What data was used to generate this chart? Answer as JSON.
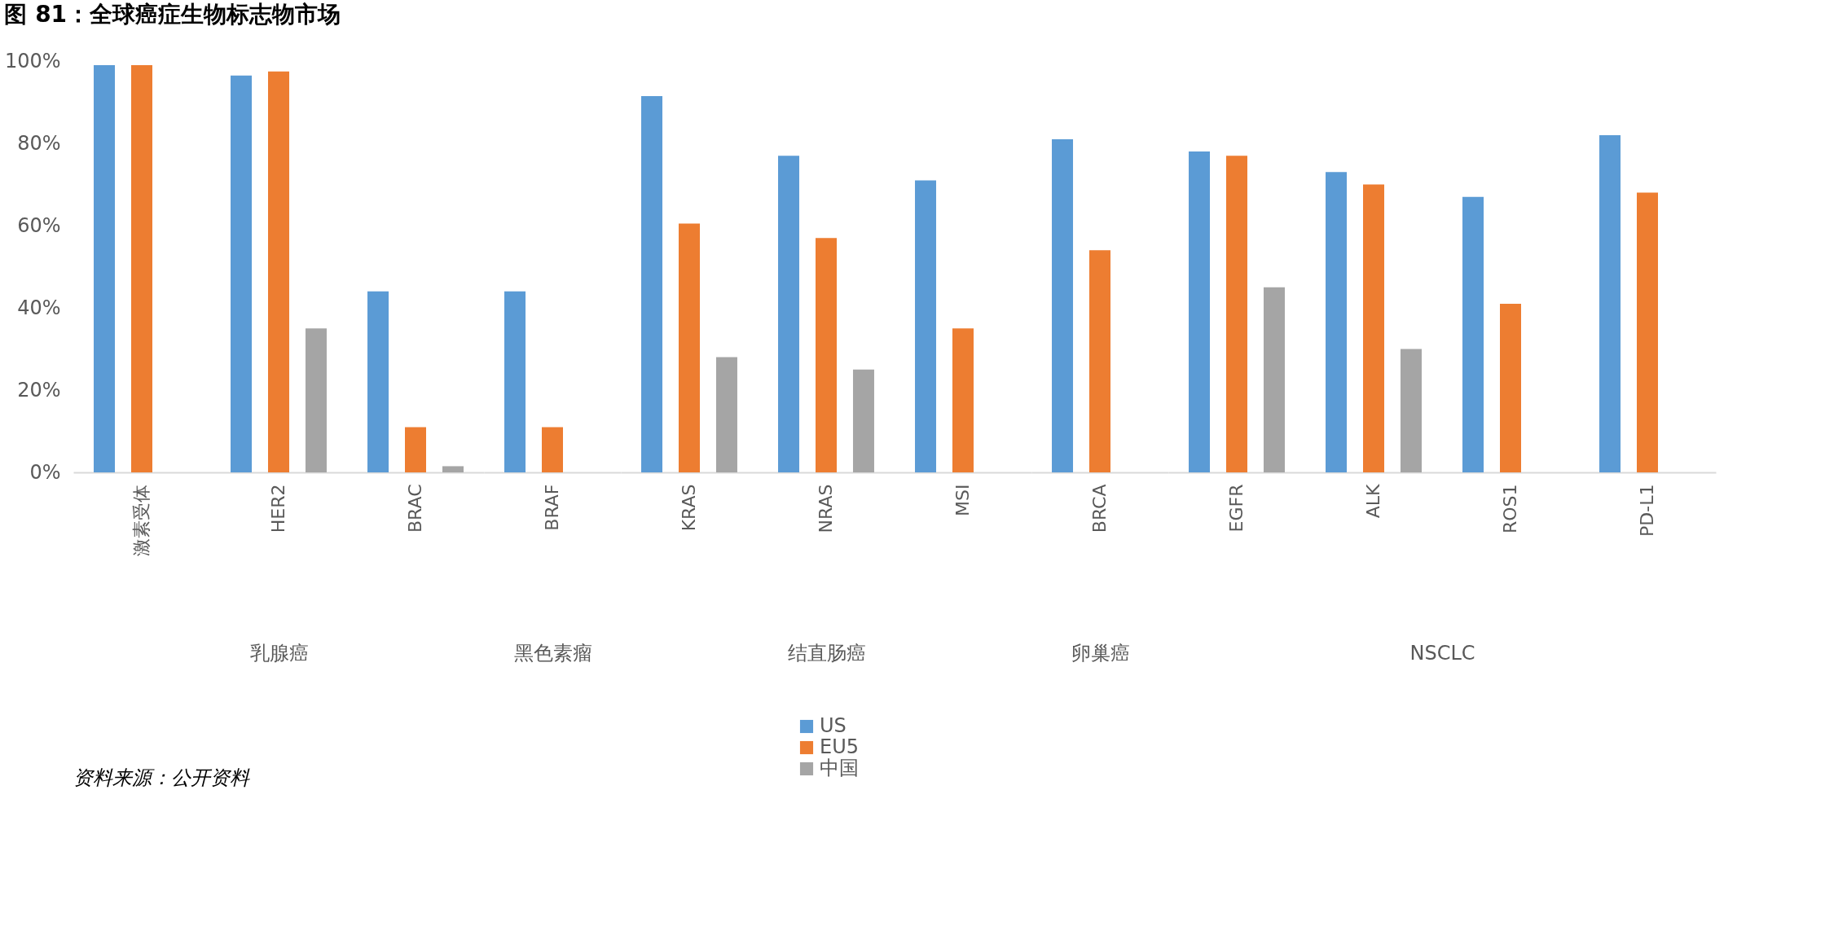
{
  "chart_data": [
    {
      "type": "bar",
      "title": "图 81：全球癌症生物标志物市场",
      "annotations": [
        "资料来源：公开资料"
      ],
      "xlabel": "乳腺癌",
      "categories": [
        "激素受体",
        "HER2",
        "BRAC"
      ],
      "series": [
        {
          "name": "US",
          "color": "#5b9bd5",
          "values": [
            99,
            96.5,
            44
          ]
        },
        {
          "name": "EU5",
          "color": "#ed7d31",
          "values": [
            99,
            97.5,
            11
          ]
        },
        {
          "name": "中国",
          "color": "#a5a5a5",
          "values": [
            null,
            35,
            1.5
          ]
        }
      ],
      "ylim": [
        0,
        100
      ],
      "yticks": [
        {
          "value": 0,
          "label": "0%"
        },
        {
          "value": 20,
          "label": "20%"
        },
        {
          "value": 40,
          "label": "40%"
        },
        {
          "value": 60,
          "label": "60%"
        },
        {
          "value": 80,
          "label": "80%"
        },
        {
          "value": 100,
          "label": "100%"
        }
      ],
      "grid": false,
      "legend": "bottom"
    },
    {
      "type": "bar",
      "xlabel": "黑色素瘤",
      "categories": [
        "BRAF"
      ],
      "series": [
        {
          "name": "US",
          "color": "#5b9bd5",
          "values": [
            44
          ]
        },
        {
          "name": "EU5",
          "color": "#ed7d31",
          "values": [
            11
          ]
        },
        {
          "name": "中国",
          "color": "#a5a5a5",
          "values": [
            null
          ]
        }
      ],
      "ylim": [
        0,
        100
      ],
      "tick_labels": "x",
      "grid": false
    },
    {
      "type": "bar",
      "xlabel": "结直肠癌",
      "categories": [
        "KRAS",
        "NRAS",
        "MSI"
      ],
      "series": [
        {
          "name": "US",
          "color": "#5b9bd5",
          "values": [
            91.5,
            77,
            71
          ]
        },
        {
          "name": "EU5",
          "color": "#ed7d31",
          "values": [
            60.5,
            57,
            35
          ]
        },
        {
          "name": "中国",
          "color": "#a5a5a5",
          "values": [
            28,
            25,
            null
          ]
        }
      ],
      "ylim": [
        0,
        100
      ],
      "tick_labels": "x",
      "grid": false
    },
    {
      "type": "bar",
      "xlabel": "卵巢癌",
      "categories": [
        "BRCA"
      ],
      "series": [
        {
          "name": "US",
          "color": "#5b9bd5",
          "values": [
            81
          ]
        },
        {
          "name": "EU5",
          "color": "#ed7d31",
          "values": [
            54
          ]
        },
        {
          "name": "中国",
          "color": "#a5a5a5",
          "values": [
            null
          ]
        }
      ],
      "ylim": [
        0,
        100
      ],
      "tick_labels": "x",
      "grid": false
    },
    {
      "type": "bar",
      "xlabel": "NSCLC",
      "categories": [
        "EGFR",
        "ALK",
        "ROS1",
        "PD-L1"
      ],
      "series": [
        {
          "name": "US",
          "color": "#5b9bd5",
          "values": [
            78,
            73,
            67,
            82
          ]
        },
        {
          "name": "EU5",
          "color": "#ed7d31",
          "values": [
            77,
            70,
            41,
            68
          ]
        },
        {
          "name": "中国",
          "color": "#a5a5a5",
          "values": [
            45,
            30,
            null,
            null
          ]
        }
      ],
      "ylim": [
        0,
        100
      ],
      "tick_labels": "x",
      "grid": false
    }
  ]
}
